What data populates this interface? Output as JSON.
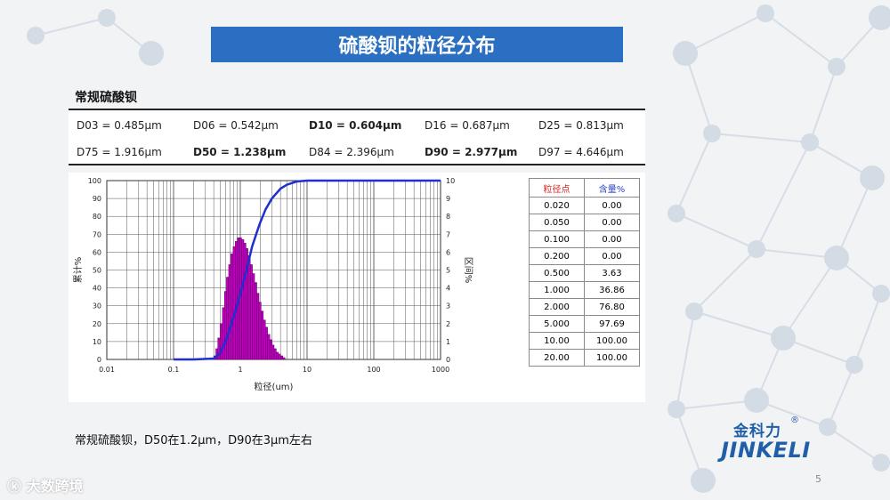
{
  "title": "硫酸钡的粒径分布",
  "section_label": "常规硫酸钡",
  "stats": [
    [
      "D03 = 0.485μm",
      "D06 = 0.542μm",
      "D10 = 0.604μm",
      "D16 = 0.687μm",
      "D25 = 0.813μm"
    ],
    [
      "D75 = 1.916μm",
      "D50 = 1.238μm",
      "D84 = 2.396μm",
      "D90 = 2.977μm",
      "D97 = 4.646μm"
    ]
  ],
  "table": {
    "headers": [
      "粒径点",
      "含量%"
    ],
    "rows": [
      [
        "0.020",
        "0.00"
      ],
      [
        "0.050",
        "0.00"
      ],
      [
        "0.100",
        "0.00"
      ],
      [
        "0.200",
        "0.00"
      ],
      [
        "0.500",
        "3.63"
      ],
      [
        "1.000",
        "36.86"
      ],
      [
        "2.000",
        "76.80"
      ],
      [
        "5.000",
        "97.69"
      ],
      [
        "10.00",
        "100.00"
      ],
      [
        "20.00",
        "100.00"
      ]
    ]
  },
  "caption": "常规硫酸钡，D50在1.2μm，D90在3μm左右",
  "logo": {
    "cn": "金科力",
    "en": "JINKELI",
    "reg": "®"
  },
  "page_number": "5",
  "watermark": "大数跨境",
  "colors": {
    "title_bar": "#2a6fc1",
    "histogram": "#c000c0",
    "cumulative": "#1f2fd0"
  },
  "chart_data": {
    "type": "bar",
    "title": "",
    "xlabel": "粒径(um)",
    "ylabel": "累计%",
    "y2label": "区间%",
    "xscale": "log",
    "xlim": [
      0.01,
      1000
    ],
    "ylim": [
      0,
      100
    ],
    "y2lim": [
      0,
      10
    ],
    "x_ticks": [
      "0.01",
      "0.1",
      "1",
      "10",
      "100",
      "1000"
    ],
    "y_ticks": [
      "0",
      "10",
      "20",
      "30",
      "40",
      "50",
      "60",
      "70",
      "80",
      "90",
      "100"
    ],
    "y2_ticks": [
      "0",
      "1",
      "2",
      "3",
      "4",
      "5",
      "6",
      "7",
      "8",
      "9",
      "10"
    ],
    "series": [
      {
        "name": "区间%",
        "type": "histogram",
        "bins": [
          [
            0.4,
            0.2
          ],
          [
            0.43,
            0.6
          ],
          [
            0.46,
            1.2
          ],
          [
            0.5,
            2.0
          ],
          [
            0.54,
            2.9
          ],
          [
            0.58,
            3.8
          ],
          [
            0.62,
            4.6
          ],
          [
            0.67,
            5.3
          ],
          [
            0.72,
            5.9
          ],
          [
            0.78,
            6.3
          ],
          [
            0.84,
            6.6
          ],
          [
            0.9,
            6.8
          ],
          [
            0.97,
            6.8
          ],
          [
            1.05,
            6.7
          ],
          [
            1.13,
            6.5
          ],
          [
            1.21,
            6.2
          ],
          [
            1.31,
            5.8
          ],
          [
            1.41,
            5.3
          ],
          [
            1.52,
            4.8
          ],
          [
            1.64,
            4.3
          ],
          [
            1.77,
            3.7
          ],
          [
            1.9,
            3.2
          ],
          [
            2.05,
            2.7
          ],
          [
            2.21,
            2.2
          ],
          [
            2.38,
            1.8
          ],
          [
            2.57,
            1.4
          ],
          [
            2.77,
            1.1
          ],
          [
            2.98,
            0.8
          ],
          [
            3.21,
            0.6
          ],
          [
            3.46,
            0.4
          ],
          [
            3.73,
            0.3
          ],
          [
            4.02,
            0.2
          ],
          [
            4.33,
            0.1
          ]
        ]
      },
      {
        "name": "累计%",
        "type": "line",
        "points": [
          [
            0.1,
            0
          ],
          [
            0.2,
            0
          ],
          [
            0.4,
            0.5
          ],
          [
            0.5,
            3.63
          ],
          [
            0.604,
            10
          ],
          [
            0.813,
            25
          ],
          [
            1.0,
            36.86
          ],
          [
            1.238,
            50
          ],
          [
            1.5,
            63
          ],
          [
            1.916,
            75
          ],
          [
            2.0,
            76.8
          ],
          [
            2.396,
            84
          ],
          [
            2.977,
            90
          ],
          [
            4.0,
            95.5
          ],
          [
            5.0,
            97.69
          ],
          [
            7.0,
            99.5
          ],
          [
            10,
            100
          ],
          [
            20,
            100
          ],
          [
            1000,
            100
          ]
        ]
      }
    ]
  }
}
